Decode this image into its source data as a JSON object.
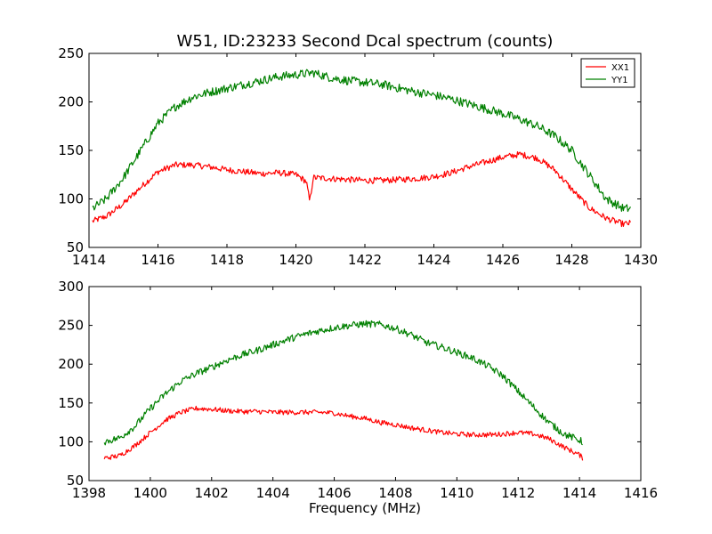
{
  "chart_data": [
    {
      "type": "line",
      "title": "W51, ID:23233 Second Dcal spectrum (counts)",
      "xlabel": "",
      "ylabel": "",
      "xlim": [
        1414,
        1430
      ],
      "ylim": [
        50,
        250
      ],
      "xticks": [
        1414,
        1416,
        1418,
        1420,
        1422,
        1424,
        1426,
        1428,
        1430
      ],
      "yticks": [
        50,
        100,
        150,
        200,
        250
      ],
      "grid": false,
      "legend": "top-right",
      "series": [
        {
          "name": "XX1",
          "color": "#ff0000",
          "x": [
            1414.1,
            1414.5,
            1415.0,
            1415.5,
            1416.0,
            1416.5,
            1417.0,
            1417.5,
            1418.0,
            1418.5,
            1419.0,
            1419.5,
            1420.0,
            1420.3,
            1420.4,
            1420.5,
            1421.0,
            1421.5,
            1422.0,
            1422.5,
            1423.0,
            1423.5,
            1424.0,
            1424.5,
            1425.0,
            1425.5,
            1426.0,
            1426.5,
            1427.0,
            1427.5,
            1428.0,
            1428.5,
            1429.0,
            1429.5,
            1429.7
          ],
          "values": [
            77,
            82,
            95,
            112,
            128,
            135,
            135,
            133,
            130,
            128,
            126,
            127,
            125,
            118,
            97,
            122,
            121,
            120,
            119,
            119,
            120,
            121,
            123,
            127,
            133,
            138,
            143,
            146,
            142,
            130,
            110,
            91,
            80,
            74,
            75
          ]
        },
        {
          "name": "YY1",
          "color": "#008000",
          "x": [
            1414.1,
            1414.5,
            1415.0,
            1415.5,
            1416.0,
            1416.5,
            1417.0,
            1417.5,
            1418.0,
            1418.5,
            1419.0,
            1419.5,
            1420.0,
            1420.5,
            1421.0,
            1421.5,
            1422.0,
            1422.5,
            1423.0,
            1423.5,
            1424.0,
            1424.5,
            1425.0,
            1425.5,
            1426.0,
            1426.5,
            1427.0,
            1427.5,
            1428.0,
            1428.5,
            1429.0,
            1429.5,
            1429.7
          ],
          "values": [
            90,
            100,
            122,
            150,
            178,
            195,
            205,
            210,
            214,
            218,
            222,
            226,
            228,
            230,
            225,
            222,
            220,
            218,
            214,
            210,
            207,
            203,
            198,
            193,
            188,
            182,
            175,
            165,
            150,
            125,
            100,
            90,
            90
          ]
        }
      ]
    },
    {
      "type": "line",
      "title": "",
      "xlabel": "Frequency (MHz)",
      "ylabel": "",
      "xlim": [
        1398,
        1416
      ],
      "ylim": [
        50,
        300
      ],
      "xticks": [
        1398,
        1400,
        1402,
        1404,
        1406,
        1408,
        1410,
        1412,
        1414,
        1416
      ],
      "yticks": [
        50,
        100,
        150,
        200,
        250,
        300
      ],
      "grid": false,
      "legend": "none",
      "series": [
        {
          "name": "",
          "color": "#ff0000",
          "x": [
            1398.5,
            1399.0,
            1399.5,
            1400.0,
            1400.5,
            1401.0,
            1401.5,
            1402.0,
            1402.5,
            1403.0,
            1403.5,
            1404.0,
            1404.5,
            1405.0,
            1405.5,
            1406.0,
            1406.5,
            1407.0,
            1407.5,
            1408.0,
            1408.5,
            1409.0,
            1409.5,
            1410.0,
            1410.5,
            1411.0,
            1411.5,
            1412.0,
            1412.5,
            1413.0,
            1413.5,
            1414.0,
            1414.1
          ],
          "values": [
            79,
            82,
            95,
            112,
            128,
            138,
            143,
            142,
            140,
            139,
            139,
            138,
            138,
            138,
            138,
            137,
            133,
            130,
            125,
            122,
            118,
            115,
            112,
            110,
            109,
            109,
            110,
            112,
            110,
            104,
            93,
            83,
            79
          ]
        },
        {
          "name": "",
          "color": "#008000",
          "x": [
            1398.5,
            1399.0,
            1399.5,
            1400.0,
            1400.5,
            1401.0,
            1401.5,
            1402.0,
            1402.5,
            1403.0,
            1403.5,
            1404.0,
            1404.5,
            1405.0,
            1405.5,
            1406.0,
            1406.5,
            1407.0,
            1407.5,
            1408.0,
            1408.5,
            1409.0,
            1409.5,
            1410.0,
            1410.5,
            1411.0,
            1411.5,
            1412.0,
            1412.5,
            1413.0,
            1413.5,
            1414.0,
            1414.1
          ],
          "values": [
            100,
            105,
            120,
            143,
            162,
            178,
            188,
            196,
            205,
            212,
            218,
            225,
            232,
            238,
            243,
            247,
            250,
            252,
            251,
            246,
            238,
            228,
            222,
            215,
            208,
            198,
            185,
            165,
            145,
            125,
            110,
            102,
            100
          ]
        }
      ]
    }
  ]
}
